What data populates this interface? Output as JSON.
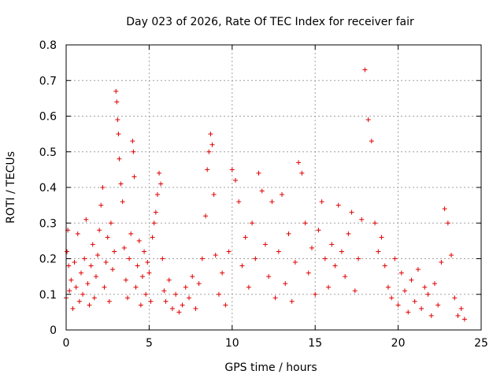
{
  "chart_data": {
    "type": "scatter",
    "title": "Day 023 of 2026, Rate Of TEC Index for receiver fair",
    "xlabel": "GPS time / hours",
    "ylabel": "ROTI / TECUs",
    "xlim": [
      0,
      25
    ],
    "ylim": [
      0,
      0.8
    ],
    "xticks": [
      0,
      5,
      10,
      15,
      20,
      25
    ],
    "yticks": [
      0,
      0.1,
      0.2,
      0.3,
      0.4,
      0.5,
      0.6,
      0.7,
      0.8
    ],
    "xtick_labels": [
      "0",
      "5",
      "10",
      "15",
      "20",
      "25"
    ],
    "ytick_labels": [
      "0",
      "0.1",
      "0.2",
      "0.3",
      "0.4",
      "0.5",
      "0.6",
      "0.7",
      "0.8"
    ],
    "grid": true,
    "marker": "+",
    "color": "#e00000",
    "series": [
      {
        "x": [
          0.0,
          0.05,
          0.1,
          0.15,
          0.2,
          0.3,
          0.4,
          0.5,
          0.6,
          0.7,
          0.8,
          0.9,
          1.0,
          1.1,
          1.2,
          1.3,
          1.4,
          1.5,
          1.6,
          1.7,
          1.8,
          1.9,
          2.0,
          2.1,
          2.2,
          2.3,
          2.4,
          2.5,
          2.6,
          2.7,
          2.8,
          2.9,
          3.0,
          3.05,
          3.1,
          3.15,
          3.2,
          3.3,
          3.4,
          3.5,
          3.6,
          3.7,
          3.8,
          3.9,
          4.0,
          4.05,
          4.1,
          4.2,
          4.3,
          4.4,
          4.5,
          4.6,
          4.7,
          4.8,
          4.9,
          5.0,
          5.1,
          5.2,
          5.3,
          5.4,
          5.5,
          5.6,
          5.7,
          5.8,
          5.9,
          6.0,
          6.2,
          6.4,
          6.6,
          6.8,
          7.0,
          7.2,
          7.4,
          7.6,
          7.8,
          8.0,
          8.2,
          8.4,
          8.5,
          8.6,
          8.7,
          8.8,
          8.9,
          9.0,
          9.2,
          9.4,
          9.6,
          9.8,
          10.0,
          10.2,
          10.4,
          10.6,
          10.8,
          11.0,
          11.2,
          11.4,
          11.6,
          11.8,
          12.0,
          12.2,
          12.4,
          12.6,
          12.8,
          13.0,
          13.2,
          13.4,
          13.6,
          13.8,
          14.0,
          14.2,
          14.4,
          14.6,
          14.8,
          15.0,
          15.2,
          15.4,
          15.6,
          15.8,
          16.0,
          16.2,
          16.4,
          16.6,
          16.8,
          17.0,
          17.2,
          17.4,
          17.6,
          17.8,
          18.0,
          18.2,
          18.4,
          18.6,
          18.8,
          19.0,
          19.2,
          19.4,
          19.6,
          19.8,
          20.0,
          20.2,
          20.4,
          20.6,
          20.8,
          21.0,
          21.2,
          21.4,
          21.6,
          21.8,
          22.0,
          22.2,
          22.4,
          22.6,
          22.8,
          23.0,
          23.2,
          23.4,
          23.6,
          23.8,
          24.0
        ],
        "y": [
          0.09,
          0.22,
          0.28,
          0.18,
          0.11,
          0.14,
          0.06,
          0.19,
          0.12,
          0.27,
          0.08,
          0.16,
          0.1,
          0.2,
          0.31,
          0.13,
          0.07,
          0.18,
          0.24,
          0.09,
          0.15,
          0.21,
          0.28,
          0.35,
          0.4,
          0.12,
          0.19,
          0.26,
          0.08,
          0.3,
          0.17,
          0.22,
          0.67,
          0.64,
          0.59,
          0.55,
          0.48,
          0.41,
          0.36,
          0.23,
          0.14,
          0.09,
          0.2,
          0.27,
          0.53,
          0.5,
          0.43,
          0.12,
          0.18,
          0.25,
          0.07,
          0.15,
          0.22,
          0.1,
          0.19,
          0.16,
          0.08,
          0.26,
          0.3,
          0.33,
          0.38,
          0.44,
          0.41,
          0.2,
          0.11,
          0.08,
          0.14,
          0.06,
          0.1,
          0.05,
          0.07,
          0.12,
          0.09,
          0.15,
          0.06,
          0.13,
          0.2,
          0.32,
          0.45,
          0.5,
          0.55,
          0.52,
          0.38,
          0.21,
          0.1,
          0.16,
          0.07,
          0.22,
          0.45,
          0.42,
          0.36,
          0.18,
          0.26,
          0.12,
          0.3,
          0.2,
          0.44,
          0.39,
          0.24,
          0.15,
          0.36,
          0.09,
          0.22,
          0.38,
          0.13,
          0.27,
          0.08,
          0.19,
          0.47,
          0.44,
          0.3,
          0.16,
          0.23,
          0.1,
          0.28,
          0.36,
          0.2,
          0.12,
          0.24,
          0.18,
          0.35,
          0.22,
          0.15,
          0.27,
          0.33,
          0.11,
          0.2,
          0.31,
          0.73,
          0.59,
          0.53,
          0.3,
          0.22,
          0.26,
          0.18,
          0.12,
          0.09,
          0.2,
          0.07,
          0.16,
          0.11,
          0.05,
          0.14,
          0.08,
          0.17,
          0.06,
          0.12,
          0.1,
          0.04,
          0.13,
          0.07,
          0.19,
          0.34,
          0.3,
          0.21,
          0.09,
          0.04,
          0.06,
          0.03
        ]
      }
    ]
  }
}
